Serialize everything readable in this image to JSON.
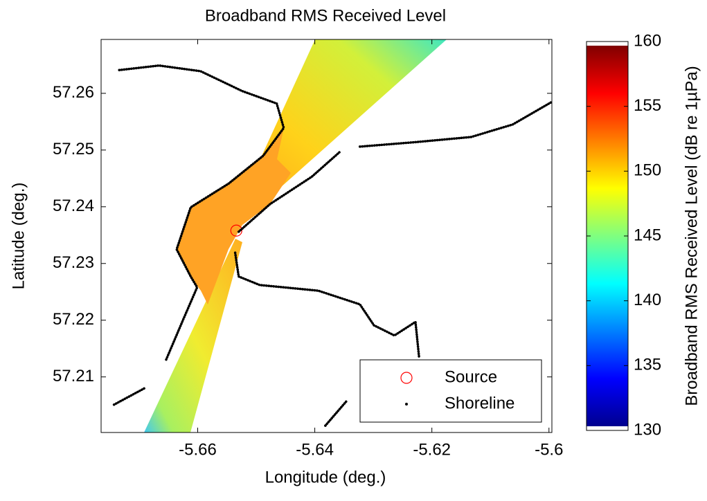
{
  "chart_data": {
    "type": "scatter",
    "title": "Broadband RMS Received Level",
    "x_label": "Longitude (deg.)",
    "y_label": "Latitude (deg.)",
    "xlim": [
      -5.6765,
      -5.5995
    ],
    "xticks": [
      -5.66,
      -5.64,
      -5.62,
      -5.6
    ],
    "ylim": [
      57.2002,
      57.2695
    ],
    "yticks": [
      57.21,
      57.22,
      57.23,
      57.24,
      57.25,
      57.26
    ],
    "series": [
      {
        "name": "Source",
        "color": "#ff0000",
        "x": [
          -5.6534
        ],
        "values": [
          57.2358
        ]
      },
      {
        "name": "Shoreline",
        "color": "#000000",
        "x": [
          -5.6734,
          -5.6666,
          -5.6595,
          -5.6524,
          -5.6465,
          -5.6453,
          -5.6488,
          -5.6547,
          -5.6612,
          -5.6636,
          -5.6612,
          -5.6601,
          -5.6624,
          -5.6654,
          null,
          -5.653,
          -5.6476,
          -5.6405,
          -5.6358,
          null,
          -5.6323,
          -5.6228,
          -5.6133,
          -5.6062,
          -5.5995,
          null,
          -5.6536,
          -5.653,
          -5.6494,
          -5.6453,
          -5.6394,
          -5.6323,
          -5.6299,
          -5.6264,
          -5.6228,
          -5.6222,
          null,
          -5.6382,
          -5.6346,
          null,
          -5.6743,
          -5.6689
        ],
        "values": [
          57.2641,
          57.2649,
          57.2639,
          57.2604,
          57.2582,
          57.2539,
          57.249,
          57.2441,
          57.2399,
          57.2325,
          57.2277,
          57.2258,
          57.2203,
          57.213,
          null,
          57.2356,
          57.2405,
          57.2453,
          57.2496,
          null,
          57.2506,
          57.2514,
          57.2523,
          57.2545,
          57.2585,
          null,
          57.2319,
          57.2277,
          57.2262,
          57.2258,
          57.2252,
          57.2228,
          57.2191,
          57.2173,
          57.2197,
          57.2136,
          null,
          57.2014,
          57.2057,
          null,
          57.2051,
          57.2081
        ]
      }
    ],
    "legend": "lower right",
    "colorbar": {
      "label": "Broadband RMS Received Level (dB re  1µPa)",
      "lim": [
        130,
        160
      ],
      "ticks": [
        130,
        135,
        140,
        145,
        150,
        155,
        160
      ]
    }
  }
}
